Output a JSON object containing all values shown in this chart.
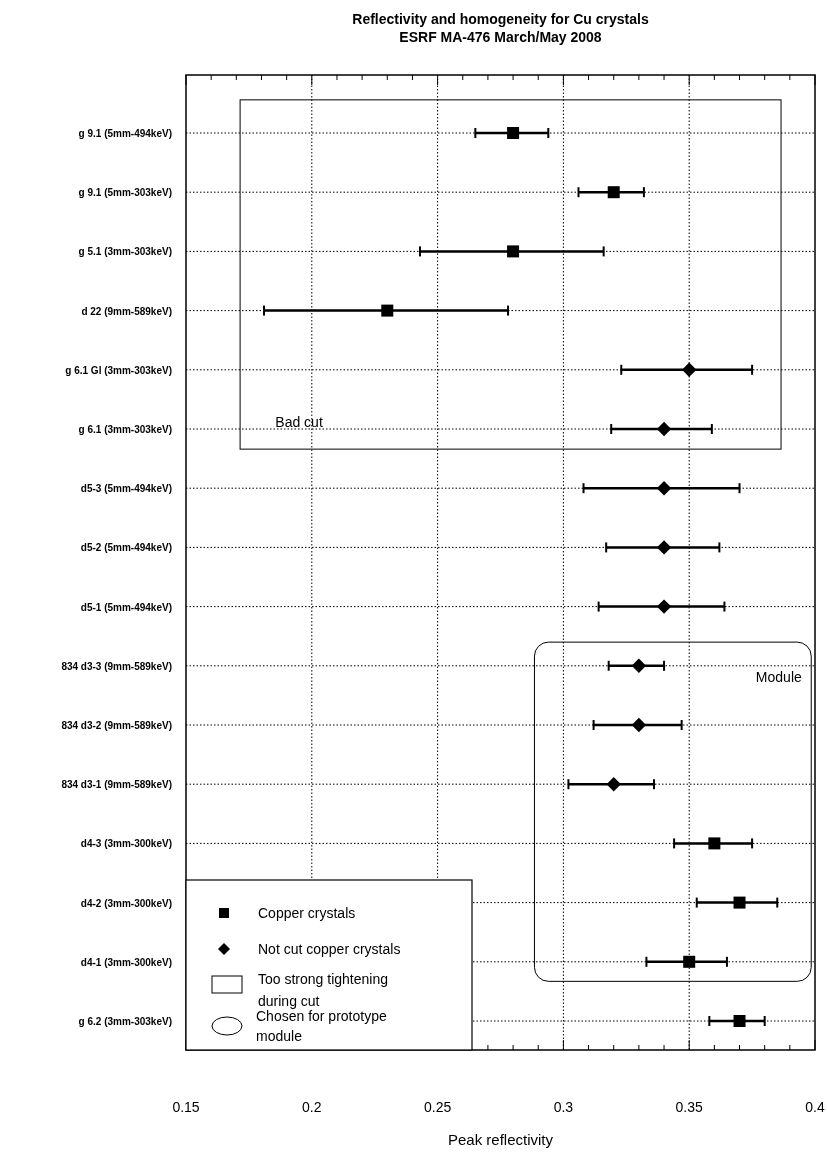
{
  "chart_data": {
    "type": "scatter",
    "orientation": "horizontal",
    "title": "Reflectivity and homogeneity for Cu crystals\nESRF MA-476 March/May 2008",
    "xlabel": "Peak reflectivity",
    "categories": [
      "g 9.1 (5mm-494keV)",
      "g 9.1 (5mm-303keV)",
      "g 5.1 (3mm-303keV)",
      "d 22 (9mm-589keV)",
      "g 6.1 Gl (3mm-303keV)",
      "g 6.1 (3mm-303keV)",
      "d5-3 (5mm-494keV)",
      "d5-2 (5mm-494keV)",
      "d5-1 (5mm-494keV)",
      "834 d3-3 (9mm-589keV)",
      "834 d3-2 (9mm-589keV)",
      "834 d3-1 (9mm-589keV)",
      "d4-3 (3mm-300keV)",
      "d4-2 (3mm-300keV)",
      "d4-1 (3mm-300keV)",
      "g 6.2 (3mm-303keV)"
    ],
    "xlim": [
      0.15,
      0.4
    ],
    "xticks": [
      0.15,
      {
        "value": 0.16,
        "label": null
      },
      {
        "value": 0.17,
        "label": null
      },
      {
        "value": 0.18,
        "label": null
      },
      {
        "value": 0.19,
        "label": null
      },
      0.2,
      {
        "value": 0.21,
        "label": null
      },
      {
        "value": 0.22,
        "label": null
      },
      {
        "value": 0.23,
        "label": null
      },
      {
        "value": 0.24,
        "label": null
      },
      0.25,
      {
        "value": 0.26,
        "label": null
      },
      {
        "value": 0.27,
        "label": null
      },
      {
        "value": 0.28,
        "label": null
      },
      {
        "value": 0.29,
        "label": null
      },
      0.3,
      {
        "value": 0.31,
        "label": null
      },
      {
        "value": 0.32,
        "label": null
      },
      {
        "value": 0.33,
        "label": null
      },
      {
        "value": 0.34,
        "label": null
      },
      0.35,
      {
        "value": 0.36,
        "label": null
      },
      {
        "value": 0.37,
        "label": null
      },
      {
        "value": 0.38,
        "label": null
      },
      {
        "value": 0.39,
        "label": null
      },
      0.4
    ],
    "grid": true,
    "legend": "bottom left",
    "line_style": "dotted",
    "series": [
      {
        "name": "Copper crystals",
        "color": "#000000",
        "marker": "square",
        "values": [
          0.28,
          0.32,
          0.28,
          0.23,
          null,
          null,
          null,
          null,
          null,
          null,
          null,
          null,
          0.36,
          0.37,
          0.35,
          0.37
        ],
        "errors": [
          [
            0.265,
            0.294
          ],
          [
            0.306,
            0.332
          ],
          [
            0.243,
            0.316
          ],
          [
            0.181,
            0.278
          ],
          null,
          null,
          null,
          null,
          null,
          null,
          null,
          null,
          [
            0.344,
            0.375
          ],
          [
            0.353,
            0.385
          ],
          [
            0.333,
            0.365
          ],
          [
            0.358,
            0.38
          ]
        ]
      },
      {
        "name": "Not cut copper crystals",
        "color": "#000000",
        "marker": "diamond",
        "values": [
          null,
          null,
          null,
          null,
          0.35,
          0.34,
          0.34,
          0.34,
          0.34,
          0.33,
          0.33,
          0.32,
          null,
          null,
          null,
          null
        ],
        "errors": [
          null,
          null,
          null,
          null,
          [
            0.323,
            0.375
          ],
          [
            0.319,
            0.359
          ],
          [
            0.308,
            0.37
          ],
          [
            0.317,
            0.362
          ],
          [
            0.314,
            0.364
          ],
          [
            0.318,
            0.34
          ],
          [
            0.312,
            0.347
          ],
          [
            0.302,
            0.336
          ],
          null,
          null,
          null,
          null
        ]
      }
    ],
    "annotations": [
      "Bad cut",
      "Module",
      "Too strong tightening during cut",
      "Chosen for prototype module"
    ]
  }
}
